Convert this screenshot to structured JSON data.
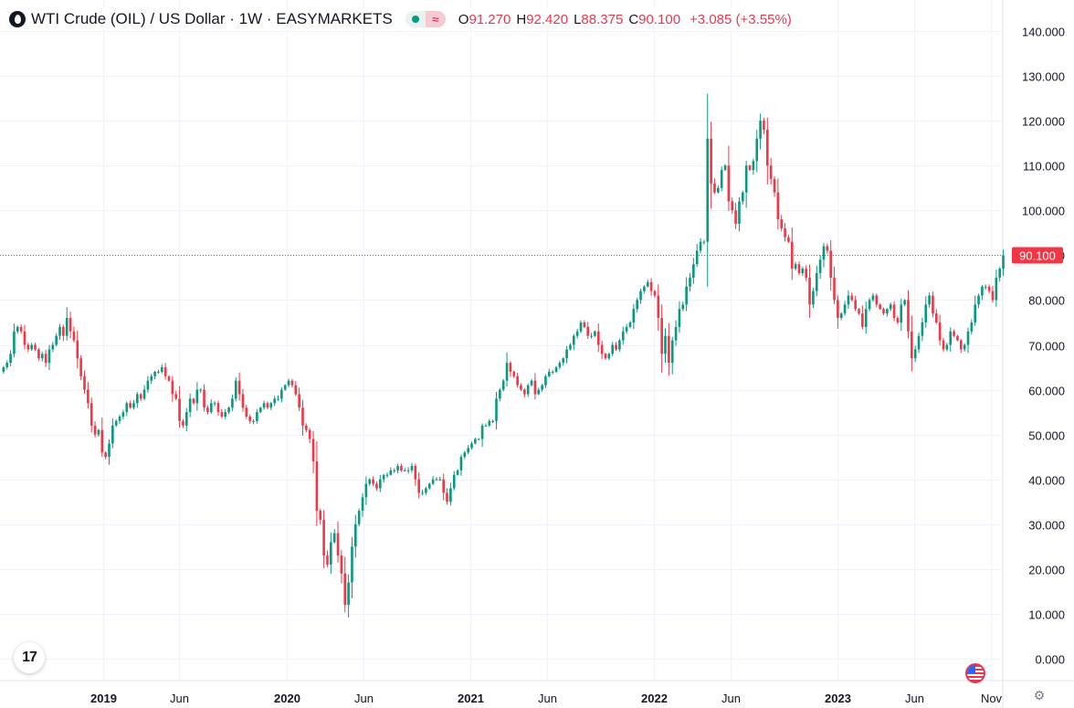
{
  "legend": {
    "title": "WTI Crude (OIL) / US Dollar · 1W · EASYMARKETS",
    "open_label": "O",
    "open": "91.270",
    "high_label": "H",
    "high": "92.420",
    "low_label": "L",
    "low": "88.375",
    "close_label": "C",
    "close": "90.100",
    "change": "+3.085 (+3.55%)"
  },
  "icons": {
    "logo": "oil-drop-icon",
    "status": "market-open-dot-icon",
    "indicator": "wave-icon",
    "brand": "tv-icon",
    "flag": "us-flag-icon",
    "settings": "gear-icon"
  },
  "colors": {
    "up": "#089981",
    "down": "#f23645",
    "grid": "#f0f3fa",
    "price_line": "#f23645",
    "axis_text": "#131722"
  },
  "chart_data": {
    "type": "candlestick",
    "timeframe": "1W",
    "ylim": [
      0,
      140
    ],
    "y_ticks": [
      "0.000",
      "10.000",
      "20.000",
      "30.000",
      "40.000",
      "50.000",
      "60.000",
      "70.000",
      "80.000",
      "90.000",
      "100.000",
      "110.000",
      "120.000",
      "130.000",
      "140.000"
    ],
    "x_ticks": [
      "2019",
      "Jun",
      "2020",
      "Jun",
      "2021",
      "Jun",
      "2022",
      "Jun",
      "2023",
      "Jun",
      "Nov"
    ],
    "x_tick_dates": [
      "2019-01-01",
      "2019-06-01",
      "2020-01-01",
      "2020-06-01",
      "2021-01-01",
      "2021-06-01",
      "2022-01-01",
      "2022-06-01",
      "2023-01-01",
      "2023-06-01",
      "2023-11-01"
    ],
    "x_range": [
      "2018-06-10",
      "2023-11-25"
    ],
    "last_price": "90.100",
    "grid": true,
    "series": [
      {
        "start_date": "2018-06-17",
        "interval_days": 7,
        "close": [
          65,
          66,
          68,
          73,
          74,
          73,
          70,
          69,
          70,
          69,
          67,
          68,
          66,
          69,
          70,
          72,
          74,
          72,
          76,
          73,
          71,
          67,
          63,
          60,
          57,
          52,
          50,
          51,
          46,
          45,
          48,
          52,
          53,
          54,
          55,
          57,
          56,
          57,
          59,
          58,
          60,
          62,
          63,
          64,
          64,
          65,
          63,
          62,
          59,
          58,
          53,
          52,
          55,
          58,
          57,
          60,
          60,
          56,
          55,
          57,
          57,
          55,
          54,
          55,
          56,
          58,
          62,
          59,
          56,
          54,
          53,
          53,
          55,
          56,
          57,
          56,
          57,
          58,
          58,
          60,
          61,
          62,
          61,
          59,
          56,
          52,
          51,
          49,
          44,
          33,
          31,
          23,
          21,
          26,
          28,
          23,
          19,
          12,
          17,
          25,
          30,
          33,
          36,
          39,
          40,
          39,
          38,
          40,
          41,
          41,
          42,
          42,
          43,
          42,
          42,
          42,
          43,
          40,
          37,
          37,
          38,
          39,
          40,
          40,
          40,
          37,
          35,
          38,
          41,
          42,
          45,
          46,
          47,
          48,
          49,
          49,
          52,
          52,
          53,
          53,
          58,
          60,
          62,
          66,
          64,
          63,
          61,
          60,
          59,
          61,
          62,
          59,
          60,
          61,
          63,
          64,
          64,
          65,
          66,
          67,
          69,
          70,
          72,
          73,
          75,
          74,
          72,
          72,
          73,
          70,
          68,
          67,
          68,
          70,
          69,
          71,
          73,
          74,
          75,
          78,
          80,
          82,
          83,
          84,
          82,
          81,
          76,
          68,
          72,
          66,
          71,
          74,
          78,
          79,
          83,
          85,
          88,
          91,
          93,
          93,
          116,
          106,
          104,
          105,
          109,
          110,
          102,
          100,
          97,
          102,
          104,
          110,
          109,
          111,
          116,
          120,
          118,
          110,
          107,
          104,
          98,
          96,
          94,
          93,
          87,
          88,
          86,
          87,
          85,
          79,
          82,
          86,
          89,
          92,
          91,
          85,
          80,
          76,
          77,
          79,
          81,
          80,
          78,
          77,
          74,
          78,
          80,
          81,
          79,
          78,
          77,
          78,
          79,
          76,
          75,
          79,
          80,
          73,
          67,
          69,
          72,
          75,
          79,
          81,
          77,
          75,
          71,
          69,
          70,
          73,
          72,
          71,
          69,
          70,
          73,
          75,
          79,
          81,
          83,
          83,
          82,
          80,
          85,
          87,
          90
        ]
      }
    ]
  }
}
